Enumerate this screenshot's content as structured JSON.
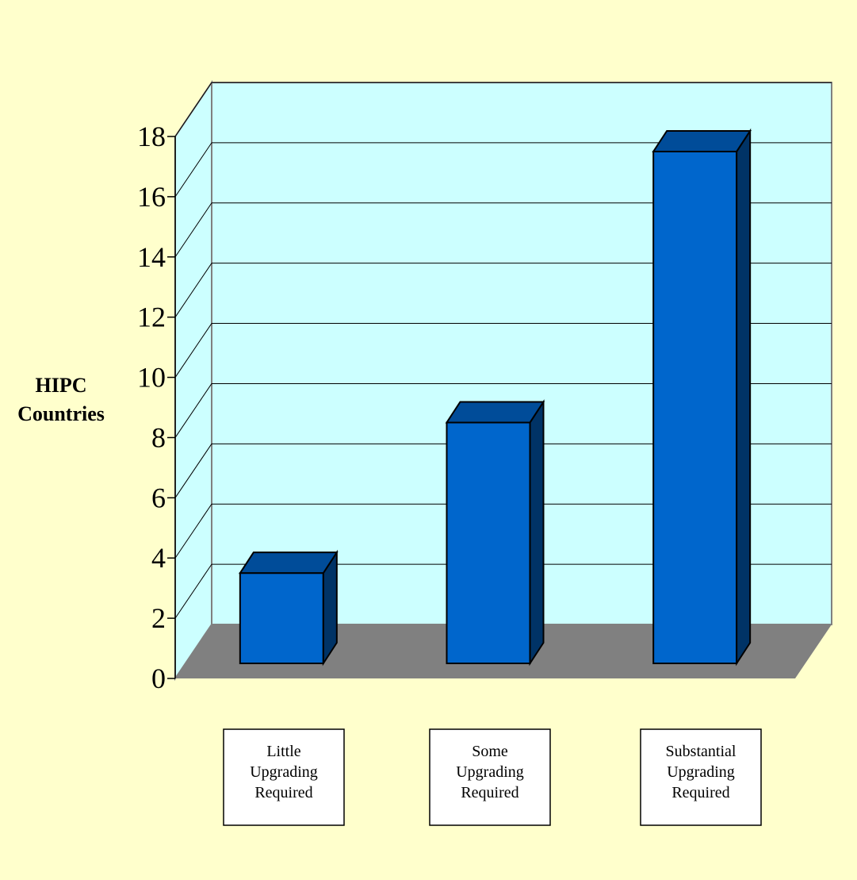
{
  "colors": {
    "page_background": "#ffffcc",
    "back_wall": "#ccffff",
    "floor": "#808080",
    "bar_front": "#0066cc",
    "bar_top": "#004c99",
    "bar_side": "#003366",
    "gridline": "#000000"
  },
  "chart_data": {
    "type": "bar",
    "title": "",
    "xlabel": "",
    "ylabel_lines": [
      "HIPC",
      "Countries"
    ],
    "categories": [
      [
        "Little",
        "Upgrading",
        "Required"
      ],
      [
        "Some",
        "Upgrading",
        "Required"
      ],
      [
        "Substantial",
        "Upgrading",
        "Required"
      ]
    ],
    "series": [
      {
        "values": [
          3,
          8,
          17
        ]
      }
    ],
    "ylim": [
      0,
      18
    ],
    "yticks": [
      0,
      2,
      4,
      6,
      8,
      10,
      12,
      14,
      16,
      18
    ],
    "grid": true,
    "legend": "none",
    "style": "3d"
  }
}
